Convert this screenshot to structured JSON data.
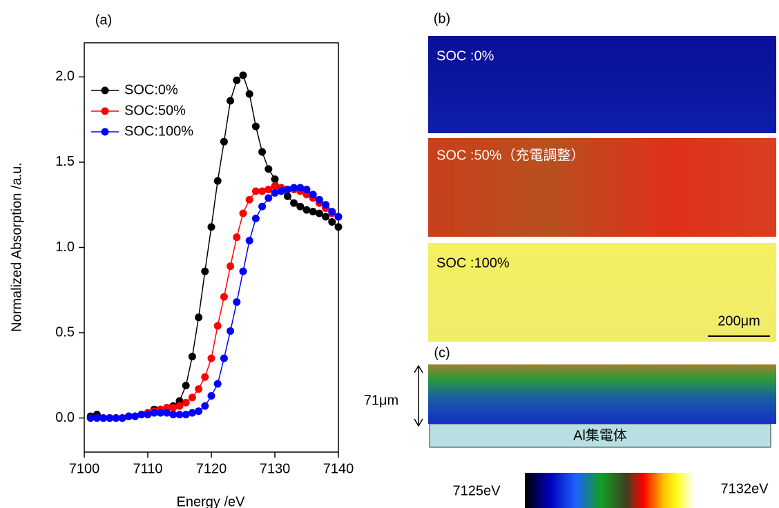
{
  "chart_data": {
    "type": "line",
    "panel_label": "(a)",
    "xlabel": "Energy /eV",
    "ylabel": "Normalized Absorption /a.u.",
    "x": [
      7101,
      7102,
      7103,
      7104,
      7105,
      7106,
      7107,
      7108,
      7109,
      7110,
      7111,
      7112,
      7113,
      7114,
      7115,
      7116,
      7117,
      7118,
      7119,
      7120,
      7121,
      7122,
      7123,
      7124,
      7125,
      7126,
      7127,
      7128,
      7129,
      7130,
      7131,
      7132,
      7133,
      7134,
      7135,
      7136,
      7137,
      7138,
      7139,
      7140
    ],
    "series": [
      {
        "name": "SOC:0%",
        "color": "#000000",
        "values": [
          0.01,
          0.02,
          0,
          0,
          0,
          0,
          0.01,
          0.01,
          0.02,
          0.03,
          0.05,
          0.05,
          0.06,
          0.07,
          0.1,
          0.19,
          0.36,
          0.59,
          0.86,
          1.12,
          1.39,
          1.62,
          1.86,
          1.98,
          2.01,
          1.9,
          1.71,
          1.56,
          1.46,
          1.4,
          1.34,
          1.3,
          1.26,
          1.24,
          1.22,
          1.21,
          1.2,
          1.18,
          1.15,
          1.12
        ]
      },
      {
        "name": "SOC:50%",
        "color": "#ff0000",
        "values": [
          0,
          0,
          0,
          0,
          0,
          0,
          0.01,
          0.01,
          0.02,
          0.03,
          0.04,
          0.05,
          0.06,
          0.06,
          0.07,
          0.09,
          0.12,
          0.17,
          0.24,
          0.35,
          0.54,
          0.71,
          0.89,
          1.06,
          1.2,
          1.28,
          1.33,
          1.33,
          1.34,
          1.36,
          1.35,
          1.34,
          1.34,
          1.33,
          1.31,
          1.29,
          1.26,
          1.23,
          1.2,
          1.18
        ]
      },
      {
        "name": "SOC:100%",
        "color": "#0000ff",
        "values": [
          0,
          0,
          0,
          0,
          0,
          0,
          0.01,
          0.01,
          0.02,
          0.02,
          0.03,
          0.03,
          0.03,
          0.02,
          0.02,
          0.02,
          0.03,
          0.04,
          0.07,
          0.13,
          0.2,
          0.35,
          0.51,
          0.68,
          0.86,
          1.04,
          1.17,
          1.24,
          1.29,
          1.32,
          1.33,
          1.34,
          1.35,
          1.35,
          1.34,
          1.31,
          1.28,
          1.25,
          1.21,
          1.18
        ]
      }
    ],
    "xlim": [
      7100,
      7140
    ],
    "xticks": [
      7100,
      7110,
      7120,
      7130,
      7140
    ],
    "ylim": [
      -0.2,
      2.2
    ],
    "yticks": [
      {
        "value": 0,
        "label": "0.0"
      },
      0.5,
      {
        "value": 1,
        "label": "1.0"
      },
      1.5,
      {
        "value": 2,
        "label": "2.0"
      }
    ],
    "legend": "upper left",
    "grid": false
  },
  "panels": {
    "b": {
      "label": "(b)",
      "images": [
        "SOC :0%",
        "SOC :50%（充電調整）",
        "SOC :100%"
      ],
      "scale_bar": "200μm"
    },
    "c": {
      "label": "(c)",
      "thickness": "71μm",
      "substrate": "Al集電体"
    },
    "colorbar": {
      "min_label": "7125eV",
      "max_label": "7132eV"
    }
  }
}
